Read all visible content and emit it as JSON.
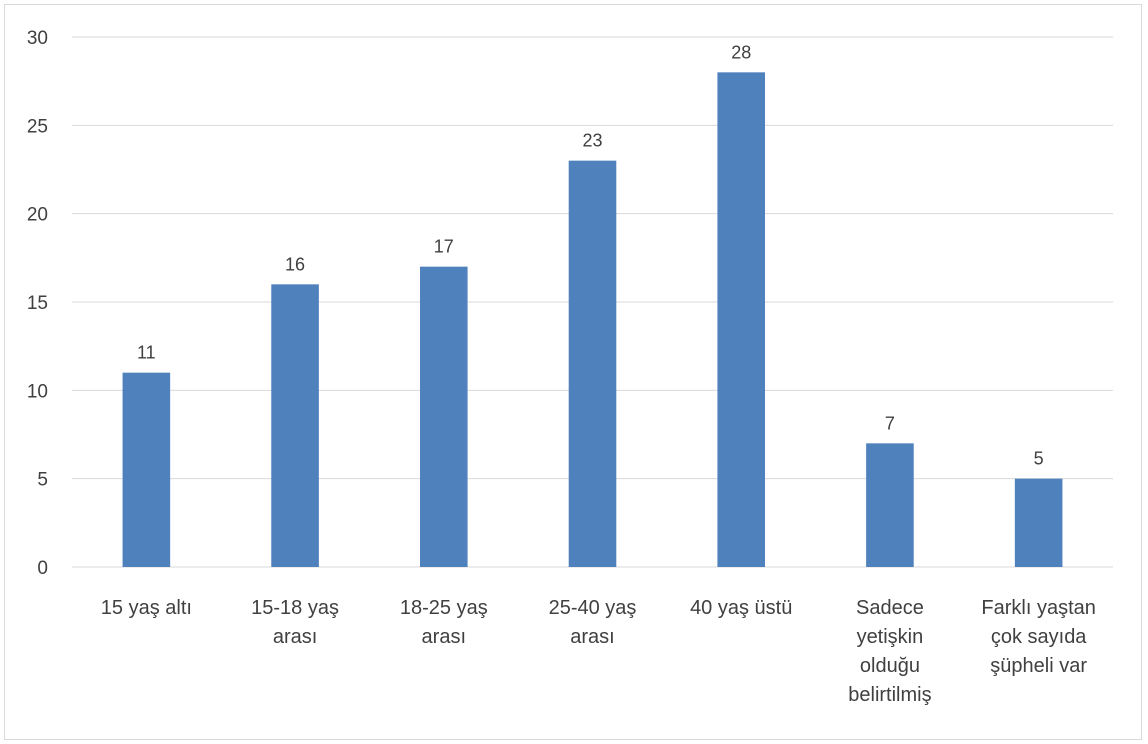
{
  "chart_data": {
    "type": "bar",
    "categories": [
      [
        "15 yaş altı"
      ],
      [
        "15-18 yaş",
        "arası"
      ],
      [
        "18-25 yaş",
        "arası"
      ],
      [
        "25-40 yaş",
        "arası"
      ],
      [
        "40 yaş üstü"
      ],
      [
        "Sadece",
        "yetişkin",
        "olduğu",
        "belirtilmiş"
      ],
      [
        "Farklı yaştan",
        "çok sayıda",
        "şüpheli var"
      ]
    ],
    "values": [
      11,
      16,
      17,
      23,
      28,
      7,
      5
    ],
    "title": "",
    "xlabel": "",
    "ylabel": "",
    "ylim": [
      0,
      30
    ],
    "yticks": [
      0,
      5,
      10,
      15,
      20,
      25,
      30
    ],
    "grid": true,
    "data_labels": true,
    "bar_color": "#4f81bd",
    "gridline_color": "#d9d9d9"
  }
}
